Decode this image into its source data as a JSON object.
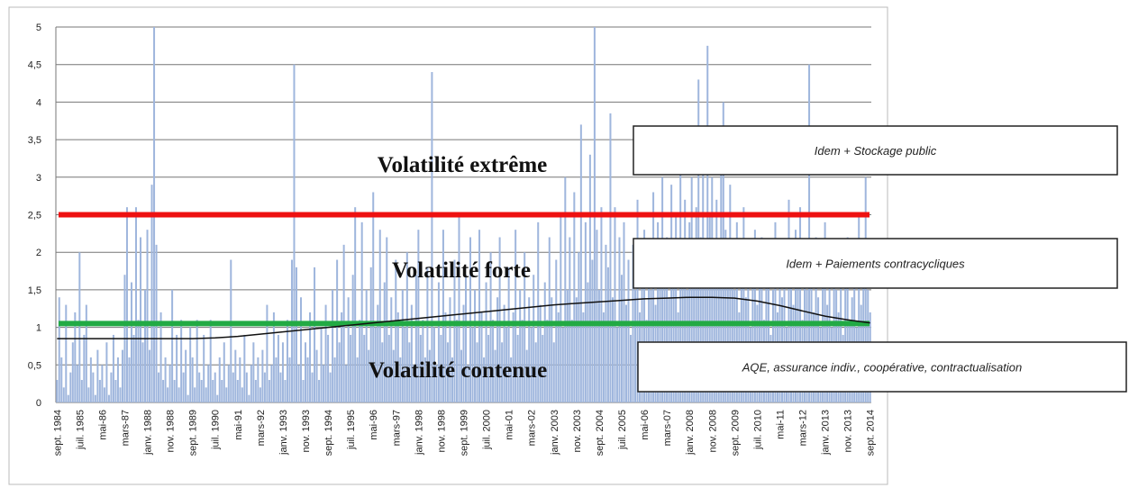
{
  "chart_data": {
    "type": "bar",
    "categories": [
      "sept. 1984",
      null,
      null,
      null,
      null,
      null,
      null,
      null,
      null,
      null,
      "juil. 1985",
      null,
      null,
      null,
      null,
      null,
      null,
      null,
      null,
      null,
      "mai-86",
      null,
      null,
      null,
      null,
      null,
      null,
      null,
      null,
      null,
      "mars-87",
      null,
      null,
      null,
      null,
      null,
      null,
      null,
      null,
      null,
      "janv. 1988",
      null,
      null,
      null,
      null,
      null,
      null,
      null,
      null,
      null,
      "nov. 1988",
      null,
      null,
      null,
      null,
      null,
      null,
      null,
      null,
      null,
      "sept. 1989",
      null,
      null,
      null,
      null,
      null,
      null,
      null,
      null,
      null,
      "juil. 1990",
      null,
      null,
      null,
      null,
      null,
      null,
      null,
      null,
      null,
      "mai-91",
      null,
      null,
      null,
      null,
      null,
      null,
      null,
      null,
      null,
      "mars-92",
      null,
      null,
      null,
      null,
      null,
      null,
      null,
      null,
      null,
      "janv. 1993",
      null,
      null,
      null,
      null,
      null,
      null,
      null,
      null,
      null,
      "nov. 1993",
      null,
      null,
      null,
      null,
      null,
      null,
      null,
      null,
      null,
      "sept. 1994",
      null,
      null,
      null,
      null,
      null,
      null,
      null,
      null,
      null,
      "juil. 1995",
      null,
      null,
      null,
      null,
      null,
      null,
      null,
      null,
      null,
      "mai-96",
      null,
      null,
      null,
      null,
      null,
      null,
      null,
      null,
      null,
      "mars-97",
      null,
      null,
      null,
      null,
      null,
      null,
      null,
      null,
      null,
      "janv. 1998",
      null,
      null,
      null,
      null,
      null,
      null,
      null,
      null,
      null,
      "nov. 1998",
      null,
      null,
      null,
      null,
      null,
      null,
      null,
      null,
      null,
      "sept. 1999",
      null,
      null,
      null,
      null,
      null,
      null,
      null,
      null,
      null,
      "juil. 2000",
      null,
      null,
      null,
      null,
      null,
      null,
      null,
      null,
      null,
      "mai-01",
      null,
      null,
      null,
      null,
      null,
      null,
      null,
      null,
      null,
      "mars-02",
      null,
      null,
      null,
      null,
      null,
      null,
      null,
      null,
      null,
      "janv. 2003",
      null,
      null,
      null,
      null,
      null,
      null,
      null,
      null,
      null,
      "nov. 2003",
      null,
      null,
      null,
      null,
      null,
      null,
      null,
      null,
      null,
      "sept. 2004",
      null,
      null,
      null,
      null,
      null,
      null,
      null,
      null,
      null,
      "juil. 2005",
      null,
      null,
      null,
      null,
      null,
      null,
      null,
      null,
      null,
      "mai-06",
      null,
      null,
      null,
      null,
      null,
      null,
      null,
      null,
      null,
      "mars-07",
      null,
      null,
      null,
      null,
      null,
      null,
      null,
      null,
      null,
      "janv. 2008",
      null,
      null,
      null,
      null,
      null,
      null,
      null,
      null,
      null,
      "nov. 2008",
      null,
      null,
      null,
      null,
      null,
      null,
      null,
      null,
      null,
      "sept. 2009",
      null,
      null,
      null,
      null,
      null,
      null,
      null,
      null,
      null,
      "juil. 2010",
      null,
      null,
      null,
      null,
      null,
      null,
      null,
      null,
      null,
      "mai-11",
      null,
      null,
      null,
      null,
      null,
      null,
      null,
      null,
      null,
      "mars-12",
      null,
      null,
      null,
      null,
      null,
      null,
      null,
      null,
      null,
      "janv. 2013",
      null,
      null,
      null,
      null,
      null,
      null,
      null,
      null,
      null,
      "nov. 2013",
      null,
      null,
      null,
      null,
      null,
      null,
      null,
      null,
      null,
      "sept. 2014"
    ],
    "values": [
      0.3,
      1.4,
      0.6,
      0.2,
      1.3,
      0.1,
      0.4,
      0.8,
      1.2,
      0.5,
      2.0,
      0.3,
      0.9,
      1.3,
      0.2,
      0.6,
      0.4,
      0.1,
      0.7,
      0.3,
      0.5,
      0.2,
      0.8,
      0.1,
      0.4,
      0.9,
      0.3,
      0.6,
      0.2,
      0.7,
      1.7,
      2.6,
      0.6,
      1.6,
      0.9,
      2.6,
      1.1,
      2.2,
      0.8,
      1.5,
      2.3,
      0.7,
      2.9,
      5.0,
      2.1,
      0.4,
      1.2,
      0.3,
      0.6,
      0.2,
      0.5,
      1.5,
      0.3,
      0.9,
      0.2,
      1.1,
      0.4,
      0.7,
      0.1,
      1.0,
      0.6,
      0.2,
      1.1,
      0.4,
      0.3,
      0.9,
      0.2,
      0.5,
      1.1,
      0.3,
      0.4,
      0.1,
      0.6,
      0.3,
      0.8,
      0.2,
      0.5,
      1.9,
      0.4,
      0.7,
      0.3,
      0.6,
      0.2,
      0.9,
      0.4,
      0.1,
      0.5,
      0.8,
      0.3,
      0.6,
      0.2,
      0.7,
      0.4,
      1.3,
      0.3,
      0.5,
      1.2,
      0.6,
      0.9,
      0.4,
      0.8,
      0.3,
      1.1,
      0.6,
      1.9,
      4.5,
      1.8,
      0.5,
      1.4,
      0.3,
      0.8,
      0.6,
      1.2,
      0.4,
      1.8,
      0.7,
      0.3,
      1.0,
      0.5,
      1.3,
      0.9,
      0.4,
      1.5,
      0.6,
      1.9,
      0.8,
      1.2,
      2.1,
      0.5,
      1.4,
      0.9,
      1.7,
      2.6,
      0.6,
      1.1,
      2.4,
      0.9,
      1.5,
      0.7,
      1.8,
      2.8,
      1.0,
      1.3,
      2.3,
      0.8,
      1.6,
      2.2,
      0.9,
      1.4,
      0.7,
      1.9,
      1.2,
      0.6,
      1.5,
      1.0,
      2.0,
      0.8,
      1.3,
      0.5,
      1.7,
      2.3,
      0.9,
      1.1,
      0.6,
      1.8,
      0.7,
      4.4,
      1.0,
      0.5,
      1.6,
      0.9,
      2.3,
      1.2,
      0.8,
      1.4,
      0.6,
      1.9,
      1.1,
      2.5,
      0.7,
      1.3,
      1.7,
      0.5,
      2.2,
      1.0,
      1.5,
      0.8,
      2.3,
      1.2,
      0.6,
      1.6,
      0.9,
      2.0,
      1.1,
      0.7,
      1.4,
      2.2,
      0.8,
      1.3,
      1.0,
      1.8,
      0.6,
      1.2,
      2.3,
      0.9,
      1.5,
      1.1,
      2.0,
      0.7,
      1.4,
      1.0,
      1.7,
      0.8,
      2.4,
      1.3,
      0.9,
      1.6,
      1.1,
      2.2,
      1.4,
      0.8,
      1.9,
      1.2,
      2.5,
      1.0,
      3.0,
      1.5,
      2.2,
      1.1,
      2.8,
      1.4,
      2.0,
      3.7,
      1.2,
      2.4,
      1.6,
      3.3,
      1.9,
      5.0,
      2.3,
      1.5,
      2.6,
      1.2,
      2.1,
      1.8,
      3.85,
      1.4,
      2.6,
      1.0,
      2.2,
      1.7,
      2.4,
      1.3,
      1.9,
      0.9,
      2.1,
      1.5,
      2.7,
      1.2,
      1.8,
      2.3,
      1.1,
      2.0,
      1.5,
      2.8,
      1.3,
      2.4,
      1.9,
      3.0,
      1.6,
      2.2,
      1.4,
      2.9,
      1.8,
      2.5,
      1.2,
      3.2,
      2.0,
      2.7,
      1.5,
      2.4,
      3.0,
      1.9,
      2.6,
      4.3,
      2.2,
      3.1,
      1.7,
      4.75,
      2.5,
      3.0,
      1.8,
      2.7,
      2.1,
      3.4,
      4.0,
      2.3,
      1.6,
      2.9,
      2.0,
      1.5,
      2.4,
      1.2,
      1.9,
      2.6,
      1.4,
      2.1,
      1.0,
      1.7,
      2.3,
      1.3,
      1.8,
      2.2,
      1.1,
      1.6,
      2.0,
      0.9,
      1.5,
      2.4,
      1.2,
      1.9,
      1.4,
      2.1,
      1.0,
      2.7,
      1.6,
      1.3,
      2.3,
      1.8,
      2.6,
      1.1,
      2.0,
      1.5,
      4.5,
      1.9,
      1.2,
      2.2,
      1.4,
      1.0,
      1.7,
      2.4,
      1.3,
      1.8,
      1.0,
      2.0,
      1.5,
      1.2,
      1.9,
      0.9,
      1.6,
      2.2,
      1.1,
      1.4,
      1.8,
      1.0,
      2.5,
      1.3,
      1.7,
      3.0,
      1.5,
      1.2
    ],
    "color": "#9fb6dd",
    "ylim": [
      0,
      5
    ],
    "yticks": [
      0,
      {
        "value": 0.5,
        "label": "0,5"
      },
      1,
      {
        "value": 1.5,
        "label": "1,5"
      },
      2,
      {
        "value": 2.5,
        "label": "2,5"
      },
      3,
      {
        "value": 3.5,
        "label": "3,5"
      },
      4,
      {
        "value": 4.5,
        "label": "4,5"
      },
      5
    ],
    "grid": true,
    "reference_lines": [
      {
        "value": 2.5,
        "color": "#ee1111"
      },
      {
        "value": 1.05,
        "color": "#22aa44"
      }
    ],
    "trend": {
      "color": "#111111",
      "categories": [
        "sept. 1984",
        "juil. 1985",
        "mai-86",
        "mars-87",
        "janv. 1988",
        "nov. 1988",
        "sept. 1989",
        "juil. 1990",
        "mai-91",
        "mars-92",
        "janv. 1993",
        "nov. 1993",
        "sept. 1994",
        "juil. 1995",
        "mai-96",
        "mars-97",
        "janv. 1998",
        "nov. 1998",
        "sept. 1999",
        "juil. 2000",
        "mai-01",
        "mars-02",
        "janv. 2003",
        "nov. 2003",
        "sept. 2004",
        "juil. 2005",
        "mai-06",
        "mars-07",
        "janv. 2008",
        "nov. 2008",
        "sept. 2009",
        "juil. 2010",
        "mai-11",
        "mars-12",
        "janv. 2013",
        "nov. 2013",
        "sept. 2014"
      ],
      "values": [
        0.85,
        0.85,
        0.85,
        0.85,
        0.85,
        0.85,
        0.85,
        0.86,
        0.88,
        0.91,
        0.94,
        0.97,
        1.0,
        1.03,
        1.06,
        1.09,
        1.12,
        1.15,
        1.18,
        1.21,
        1.24,
        1.27,
        1.3,
        1.32,
        1.34,
        1.36,
        1.38,
        1.39,
        1.4,
        1.4,
        1.39,
        1.35,
        1.29,
        1.22,
        1.15,
        1.1,
        1.06
      ]
    },
    "zones": [
      "Volatilité extrême",
      "Volatilité forte",
      "Volatilité contenue"
    ],
    "boxes": [
      "Idem + Stockage public",
      "Idem + Paiements contracycliques",
      "AQE, assurance indiv., coopérative, contractualisation"
    ]
  }
}
